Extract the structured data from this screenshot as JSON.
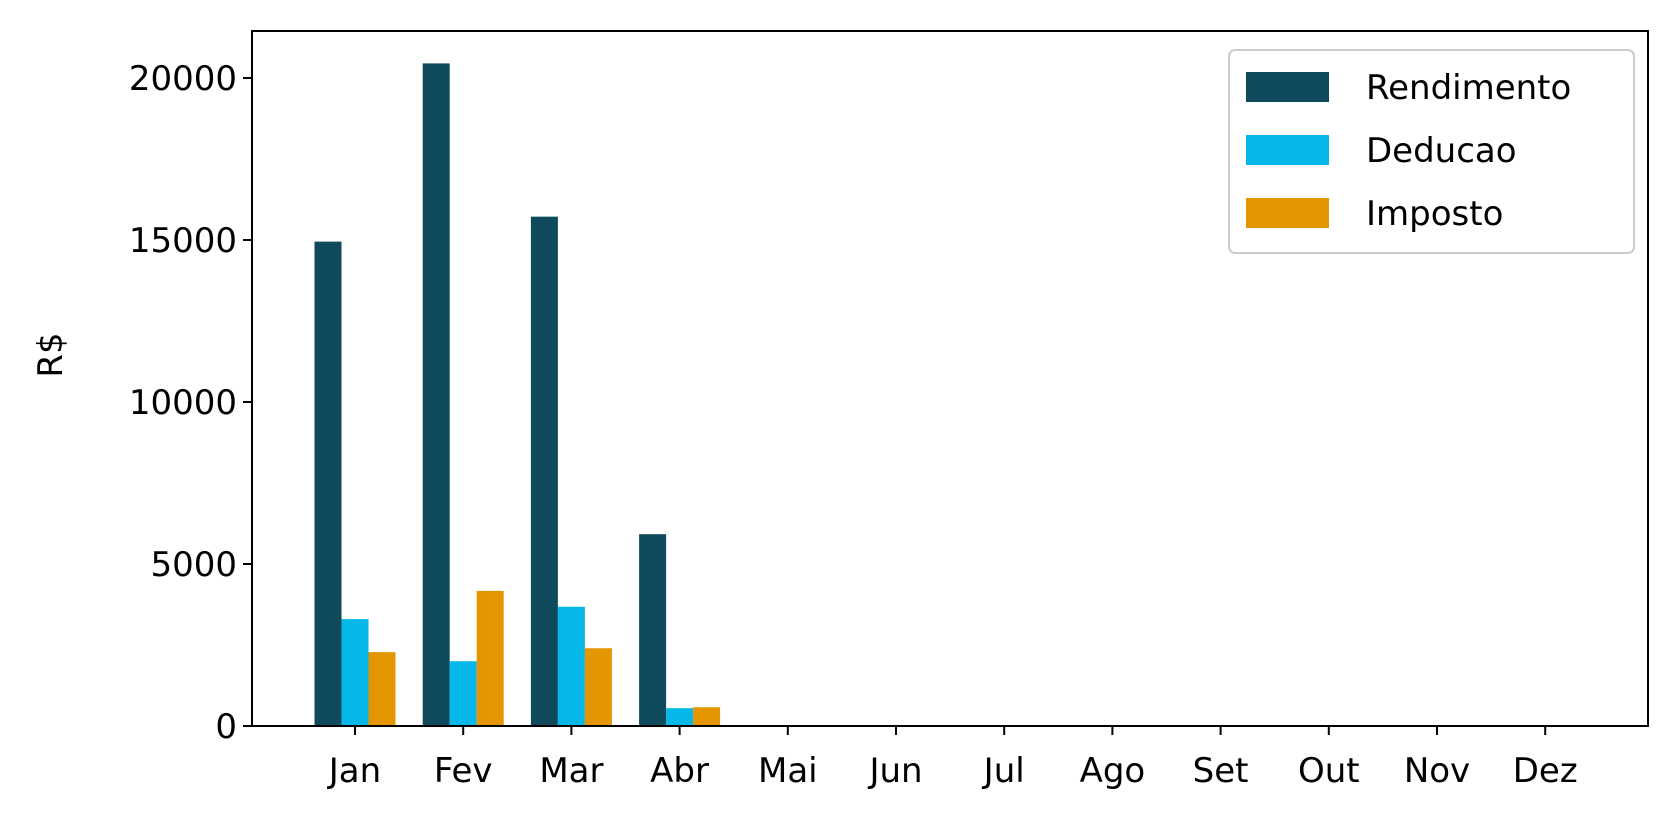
{
  "chart_data": {
    "type": "bar",
    "categories": [
      "Jan",
      "Fev",
      "Mar",
      "Abr",
      "Mai",
      "Jun",
      "Jul",
      "Ago",
      "Set",
      "Out",
      "Nov",
      "Dez"
    ],
    "series": [
      {
        "name": "Rendimento",
        "color": "#0f4a5c",
        "values": [
          14950,
          20450,
          15720,
          5920,
          0,
          0,
          0,
          0,
          0,
          0,
          0,
          0
        ]
      },
      {
        "name": "Deducao",
        "color": "#06b7e9",
        "values": [
          3300,
          2000,
          3680,
          550,
          0,
          0,
          0,
          0,
          0,
          0,
          0,
          0
        ]
      },
      {
        "name": "Imposto",
        "color": "#e49600",
        "values": [
          2280,
          4170,
          2400,
          580,
          0,
          0,
          0,
          0,
          0,
          0,
          0,
          0
        ]
      }
    ],
    "title": "",
    "xlabel": "",
    "ylabel": "R$",
    "ylim": [
      0,
      21450
    ],
    "yticks": [
      0,
      5000,
      10000,
      15000,
      20000
    ],
    "legend_position": "top-right",
    "grid": false
  }
}
